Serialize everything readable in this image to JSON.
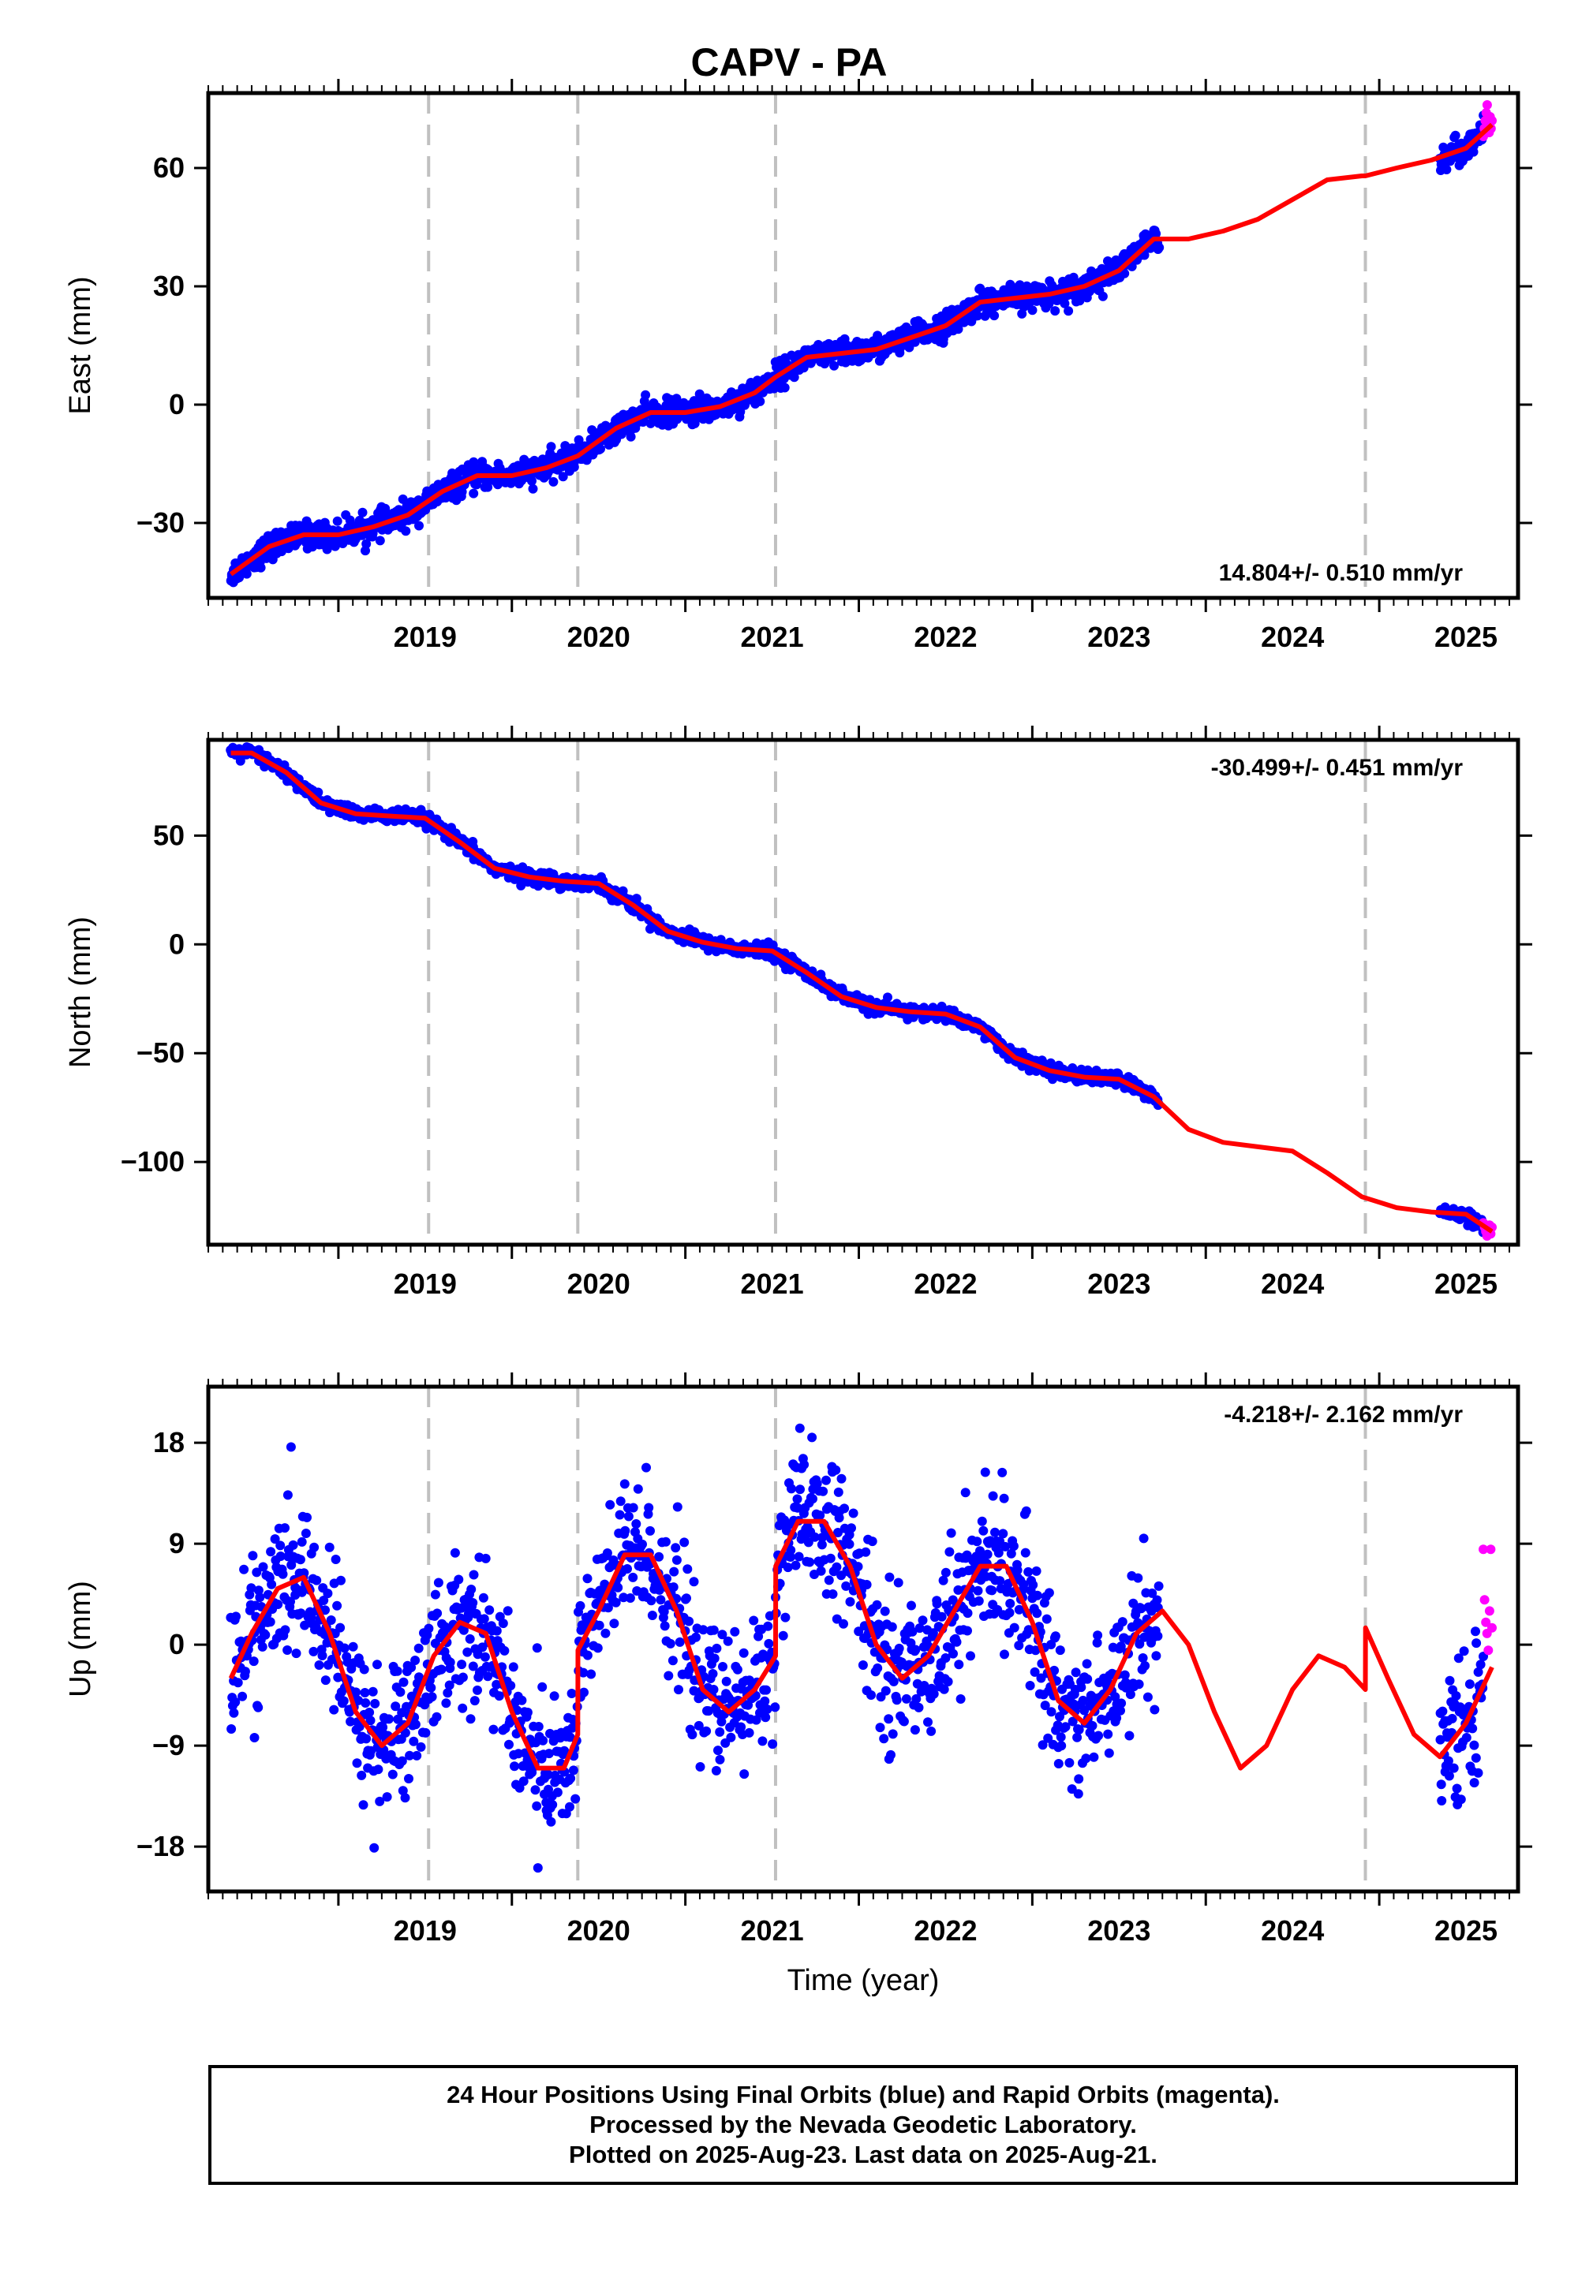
{
  "page": {
    "title": "CAPV - PA"
  },
  "footer": {
    "line1": "24 Hour Positions Using Final Orbits (blue) and Rapid Orbits (magenta).",
    "line2": "Processed by the Nevada Geodetic Laboratory.",
    "line3": "Plotted on 2025-Aug-23. Last data on 2025-Aug-21."
  },
  "chart_data": [
    {
      "type": "scatter",
      "component": "east",
      "ylabel": "East (mm)",
      "xlabel": "",
      "rate_label": "14.804+/- 0.510 mm/yr",
      "xlim": [
        2018.25,
        2025.8
      ],
      "ylim": [
        -49,
        79
      ],
      "yticks": [
        -30,
        0,
        30,
        60
      ],
      "ytick_labels": [
        "−30",
        "0",
        "30",
        "60"
      ],
      "xticks": [
        2019,
        2020,
        2021,
        2022,
        2023,
        2024,
        2025
      ],
      "xtick_labels": [
        "2019",
        "2020",
        "2021",
        "2022",
        "2023",
        "2024",
        "2025"
      ],
      "breaks": [
        2019.52,
        2020.38,
        2021.52,
        2024.92
      ],
      "model_x": [
        2018.38,
        2018.6,
        2018.8,
        2019.0,
        2019.2,
        2019.4,
        2019.6,
        2019.8,
        2020.0,
        2020.2,
        2020.38,
        2020.6,
        2020.8,
        2021.0,
        2021.2,
        2021.4,
        2021.52,
        2021.7,
        2021.9,
        2022.1,
        2022.3,
        2022.5,
        2022.7,
        2022.9,
        2023.1,
        2023.3,
        2023.5,
        2023.7,
        2023.9,
        2024.1,
        2024.3,
        2024.5,
        2024.7,
        2024.9,
        2024.92,
        2025.1,
        2025.3,
        2025.5,
        2025.65
      ],
      "model_y": [
        -43,
        -36,
        -33,
        -33,
        -31,
        -28,
        -22,
        -18,
        -18,
        -16,
        -13,
        -6,
        -2,
        -2,
        -0.5,
        3,
        7,
        12,
        13,
        14,
        17,
        20,
        26,
        27,
        28,
        30,
        34,
        42,
        42,
        44,
        47,
        52,
        57,
        58,
        58,
        60,
        62,
        65,
        71
      ],
      "final_segments": [
        {
          "start": 2018.38,
          "end": 2023.73,
          "scatter": 1.6,
          "rate": 14.8
        },
        {
          "start": 2025.35,
          "end": 2025.6,
          "scatter": 1.6,
          "rate": 14.8
        }
      ],
      "rapid_points": {
        "start": 2025.6,
        "end": 2025.65,
        "y": [
          68,
          70,
          72,
          74,
          76,
          71,
          69,
          73,
          70,
          72
        ]
      },
      "series": [
        {
          "name": "Final Orbits (blue)",
          "color": "#0000ff"
        },
        {
          "name": "Rapid Orbits (magenta)",
          "color": "#ff00ff"
        }
      ]
    },
    {
      "type": "scatter",
      "component": "north",
      "ylabel": "North (mm)",
      "xlabel": "",
      "rate_label": "-30.499+/- 0.451 mm/yr",
      "xlim": [
        2018.25,
        2025.8
      ],
      "ylim": [
        -138,
        94
      ],
      "yticks": [
        -100,
        -50,
        0,
        50
      ],
      "ytick_labels": [
        "−100",
        "−50",
        "0",
        "50"
      ],
      "xticks": [
        2019,
        2020,
        2021,
        2022,
        2023,
        2024,
        2025
      ],
      "xtick_labels": [
        "2019",
        "2020",
        "2021",
        "2022",
        "2023",
        "2024",
        "2025"
      ],
      "breaks": [
        2019.52,
        2020.38,
        2021.52,
        2024.92
      ],
      "model_x": [
        2018.38,
        2018.5,
        2018.7,
        2018.9,
        2019.1,
        2019.3,
        2019.5,
        2019.7,
        2019.9,
        2020.1,
        2020.3,
        2020.5,
        2020.7,
        2020.9,
        2021.1,
        2021.3,
        2021.5,
        2021.7,
        2021.9,
        2022.1,
        2022.3,
        2022.5,
        2022.7,
        2022.9,
        2023.1,
        2023.3,
        2023.5,
        2023.7,
        2023.9,
        2024.1,
        2024.3,
        2024.5,
        2024.7,
        2024.9,
        2025.1,
        2025.3,
        2025.5,
        2025.65
      ],
      "model_y": [
        88,
        88,
        79,
        65,
        60,
        59,
        58,
        47,
        35,
        31,
        29,
        28,
        18,
        6,
        1,
        -2,
        -3,
        -13,
        -24,
        -29,
        -31,
        -32,
        -38,
        -52,
        -58,
        -61,
        -62,
        -70,
        -85,
        -91,
        -93,
        -95,
        -105,
        -116,
        -121,
        -123,
        -124,
        -132
      ],
      "final_segments": [
        {
          "start": 2018.38,
          "end": 2023.73,
          "scatter": 1.5,
          "rate": -30.5
        },
        {
          "start": 2025.35,
          "end": 2025.6,
          "scatter": 1.5,
          "rate": -30.5
        }
      ],
      "rapid_points": {
        "start": 2025.6,
        "end": 2025.65,
        "y": [
          -128,
          -130,
          -132,
          -134,
          -131,
          -129,
          -133,
          -130
        ]
      },
      "series": [
        {
          "name": "Final Orbits (blue)",
          "color": "#0000ff"
        },
        {
          "name": "Rapid Orbits (magenta)",
          "color": "#ff00ff"
        }
      ]
    },
    {
      "type": "scatter",
      "component": "up",
      "ylabel": "Up (mm)",
      "xlabel": "Time (year)",
      "rate_label": "-4.218+/- 2.162 mm/yr",
      "xlim": [
        2018.25,
        2025.8
      ],
      "ylim": [
        -22,
        23
      ],
      "yticks": [
        -18,
        -9,
        0,
        9,
        18
      ],
      "ytick_labels": [
        "−18",
        "−9",
        "0",
        "9",
        "18"
      ],
      "xticks": [
        2019,
        2020,
        2021,
        2022,
        2023,
        2024,
        2025
      ],
      "xtick_labels": [
        "2019",
        "2020",
        "2021",
        "2022",
        "2023",
        "2024",
        "2025"
      ],
      "breaks": [
        2019.52,
        2020.38,
        2021.52,
        2024.92
      ],
      "model_x": [
        2018.38,
        2018.5,
        2018.65,
        2018.8,
        2018.95,
        2019.1,
        2019.25,
        2019.4,
        2019.55,
        2019.7,
        2019.85,
        2020.0,
        2020.15,
        2020.3,
        2020.38,
        2020.381,
        2020.5,
        2020.65,
        2020.8,
        2020.95,
        2021.1,
        2021.25,
        2021.4,
        2021.52,
        2021.521,
        2021.65,
        2021.8,
        2021.95,
        2022.1,
        2022.25,
        2022.4,
        2022.55,
        2022.7,
        2022.85,
        2023.0,
        2023.15,
        2023.3,
        2023.45,
        2023.6,
        2023.75,
        2023.9,
        2024.05,
        2024.2,
        2024.35,
        2024.5,
        2024.65,
        2024.8,
        2024.92,
        2024.921,
        2025.05,
        2025.2,
        2025.35,
        2025.5,
        2025.65
      ],
      "model_y": [
        -3,
        1,
        5,
        6,
        1,
        -6,
        -9,
        -7,
        -1,
        2,
        1,
        -6,
        -11,
        -11,
        -8,
        -0.5,
        3,
        8,
        8,
        3,
        -4,
        -6,
        -4,
        -1,
        7,
        11,
        11,
        7,
        0,
        -3,
        -1,
        3,
        7,
        7,
        2,
        -5,
        -7,
        -4,
        1,
        3,
        0,
        -6,
        -11,
        -9,
        -4,
        -1,
        -2,
        -4,
        1.5,
        -3,
        -8,
        -10,
        -7,
        -2
      ],
      "final_segments": [
        {
          "start": 2018.38,
          "end": 2023.73,
          "scatter": 3.2,
          "rate": -4.2
        },
        {
          "start": 2025.35,
          "end": 2025.6,
          "scatter": 3.0,
          "rate": -4.2
        }
      ],
      "rapid_points": {
        "start": 2025.6,
        "end": 2025.65,
        "y": [
          8.5,
          4,
          2,
          1,
          -0.5,
          3,
          8.5,
          1.5
        ]
      },
      "series": [
        {
          "name": "Final Orbits (blue)",
          "color": "#0000ff"
        },
        {
          "name": "Rapid Orbits (magenta)",
          "color": "#ff00ff"
        }
      ]
    }
  ],
  "colors": {
    "final": "#0000ff",
    "rapid": "#ff00ff",
    "model": "#ff0000",
    "break_line": "#c0c0c0"
  }
}
